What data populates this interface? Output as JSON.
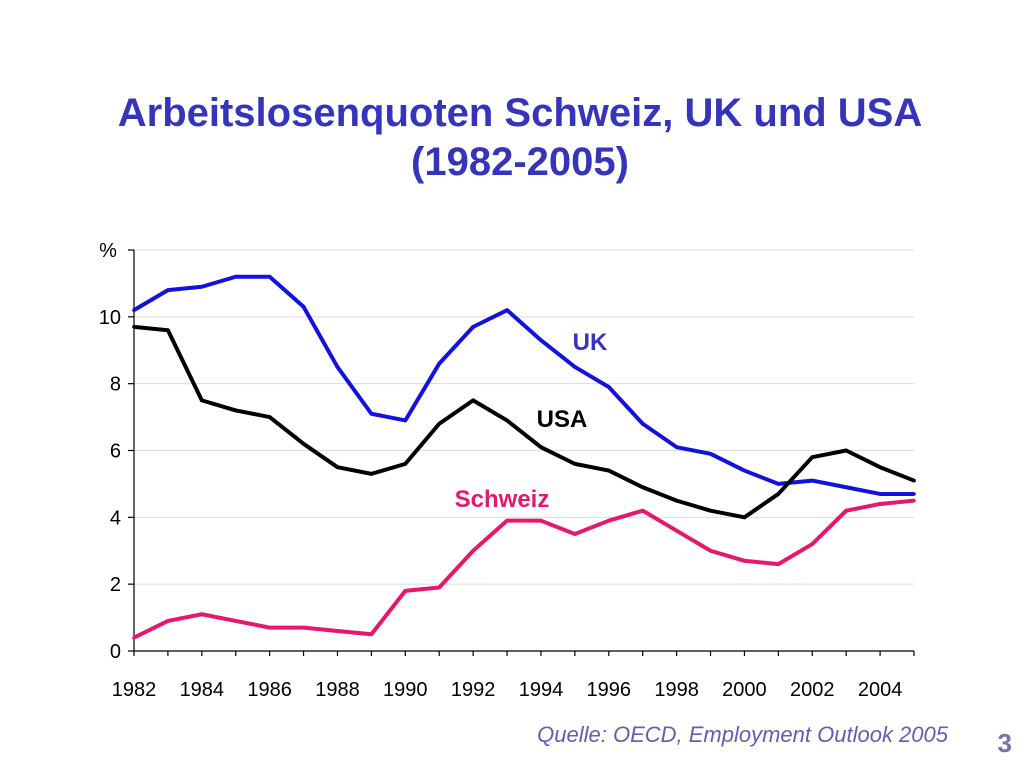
{
  "colors": {
    "title": "#3434BC",
    "source": "#5F5FB3",
    "page_number": "#7474A6",
    "axis": "#000000",
    "grid": "#DCDCDC"
  },
  "footer": {
    "source": "Quelle: OECD, Employment Outlook 2005",
    "page_number": "3"
  },
  "chart_data": {
    "type": "line",
    "title": "Arbeitslosenquoten Schweiz, UK und USA (1982-2005)",
    "ylabel": "%",
    "xlim": [
      1982,
      2005
    ],
    "ylim": [
      0,
      12
    ],
    "y_ticks": [
      0,
      2,
      4,
      6,
      8,
      10
    ],
    "x_ticks": [
      1982,
      1984,
      1986,
      1988,
      1990,
      1992,
      1994,
      1996,
      1998,
      2000,
      2002,
      2004
    ],
    "grid": true,
    "legend": "inline labels",
    "x": [
      1982,
      1983,
      1984,
      1985,
      1986,
      1987,
      1988,
      1989,
      1990,
      1991,
      1992,
      1993,
      1994,
      1995,
      1996,
      1997,
      1998,
      1999,
      2000,
      2001,
      2002,
      2003,
      2004,
      2005
    ],
    "series": [
      {
        "name": "UK",
        "color": "#1212DE",
        "label_color": "#3434BC",
        "values": [
          10.2,
          10.8,
          10.9,
          11.2,
          11.2,
          10.3,
          8.5,
          7.1,
          6.9,
          8.6,
          9.7,
          10.2,
          9.3,
          8.5,
          7.9,
          6.8,
          6.1,
          5.9,
          5.4,
          5.0,
          5.1,
          4.9,
          4.7,
          4.7
        ]
      },
      {
        "name": "USA",
        "color": "#000000",
        "label_color": "#000000",
        "values": [
          9.7,
          9.6,
          7.5,
          7.2,
          7.0,
          6.2,
          5.5,
          5.3,
          5.6,
          6.8,
          7.5,
          6.9,
          6.1,
          5.6,
          5.4,
          4.9,
          4.5,
          4.2,
          4.0,
          4.7,
          5.8,
          6.0,
          5.5,
          5.1
        ]
      },
      {
        "name": "Schweiz",
        "color": "#E5186D",
        "label_color": "#E5186D",
        "values": [
          0.4,
          0.9,
          1.1,
          0.9,
          0.7,
          0.7,
          0.6,
          0.5,
          1.8,
          1.9,
          3.0,
          3.9,
          3.9,
          3.5,
          3.9,
          4.2,
          3.6,
          3.0,
          2.7,
          2.6,
          3.2,
          4.2,
          4.4,
          4.5
        ]
      }
    ]
  }
}
